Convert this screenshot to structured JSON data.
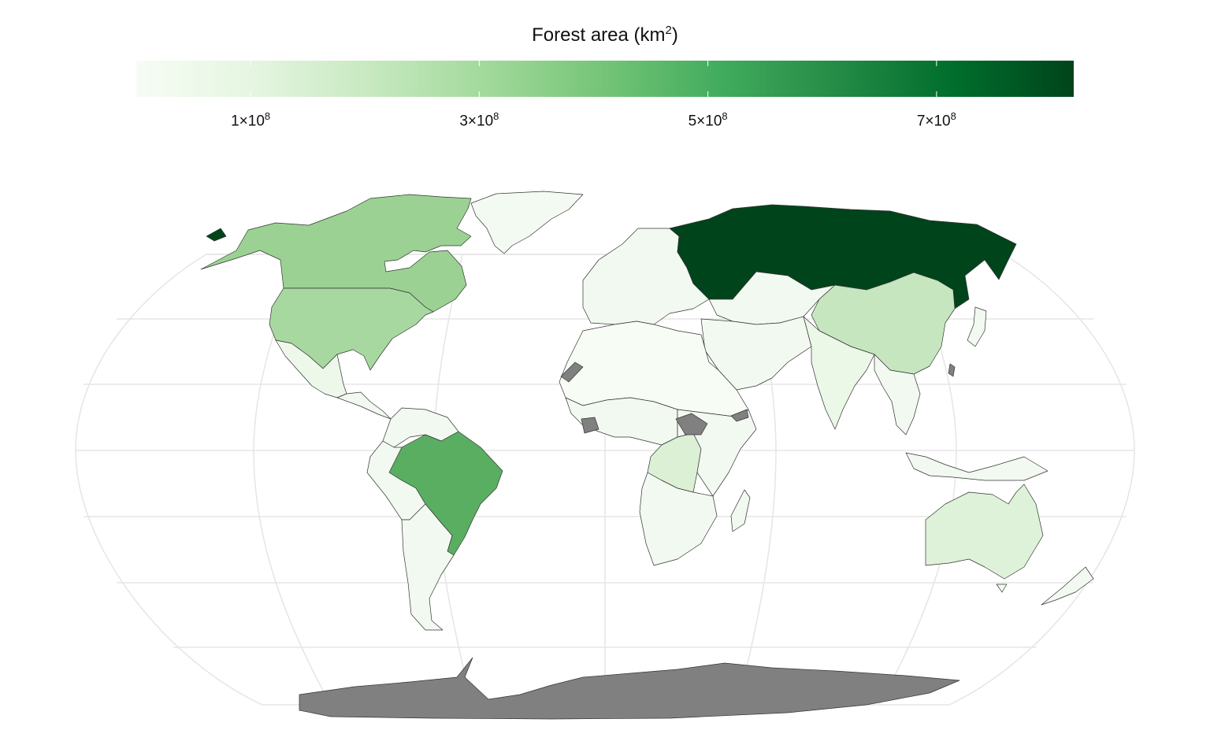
{
  "legend": {
    "title_text": "Forest area (km",
    "title_sup": "2",
    "title_close": ")",
    "gradient": [
      "#f7fcf5",
      "#e5f5e0",
      "#c7e9c0",
      "#a1d99b",
      "#74c476",
      "#41ab5d",
      "#238b45",
      "#006d2c",
      "#00441b"
    ],
    "range": [
      0,
      820000000
    ],
    "ticks": [
      {
        "value": 100000000,
        "base": "1×10",
        "exp": "8"
      },
      {
        "value": 300000000,
        "base": "3×10",
        "exp": "8"
      },
      {
        "value": 500000000,
        "base": "5×10",
        "exp": "8"
      },
      {
        "value": 700000000,
        "base": "7×10",
        "exp": "8"
      }
    ]
  },
  "map": {
    "projection": "Robinson",
    "graticule_color": "#e5e5e5",
    "border_color": "#333333",
    "na_color": "#808080",
    "regions": [
      {
        "name": "Russia",
        "fill": "#00441b"
      },
      {
        "name": "Brazil",
        "fill": "#5aae61"
      },
      {
        "name": "Canada",
        "fill": "#9bd293"
      },
      {
        "name": "United States",
        "fill": "#a7d8a0"
      },
      {
        "name": "China",
        "fill": "#c6e6bf"
      },
      {
        "name": "Greenland",
        "fill": "#f3faf1"
      },
      {
        "name": "Alaska",
        "fill": "#00441b"
      },
      {
        "name": "DR Congo",
        "fill": "#dbf0d5"
      },
      {
        "name": "Australia",
        "fill": "#def2d9"
      },
      {
        "name": "India",
        "fill": "#ebf7e7"
      },
      {
        "name": "Mexico",
        "fill": "#edf8ea"
      },
      {
        "name": "Antarctica",
        "fill": "#808080"
      },
      {
        "name": "South Sudan",
        "fill": "#808080"
      },
      {
        "name": "Somaliland",
        "fill": "#808080"
      },
      {
        "name": "Western Sahara",
        "fill": "#808080"
      },
      {
        "name": "Ivory Coast",
        "fill": "#808080"
      },
      {
        "name": "Taiwan",
        "fill": "#808080"
      }
    ]
  }
}
